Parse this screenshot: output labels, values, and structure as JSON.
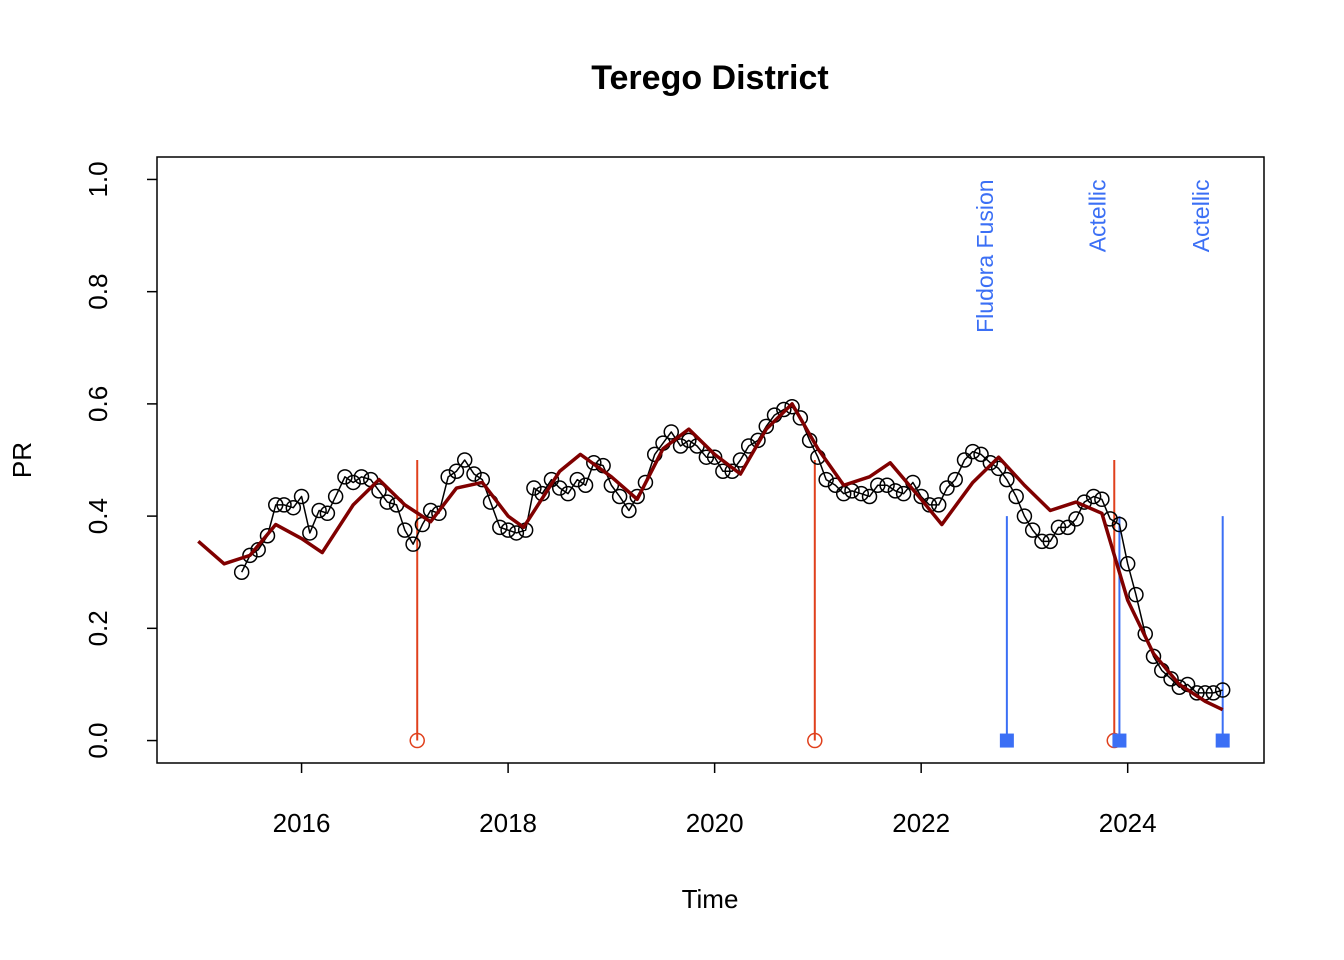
{
  "chart_data": {
    "type": "line",
    "title": "Terego District",
    "xlabel": "Time",
    "ylabel": "PR",
    "xlim": [
      2014.6,
      2025.32
    ],
    "ylim": [
      -0.04,
      1.04
    ],
    "xticks": [
      2016,
      2018,
      2020,
      2022,
      2024
    ],
    "yticks": [
      {
        "value": 0,
        "label": "0.0"
      },
      {
        "value": 0.2,
        "label": "0.2"
      },
      {
        "value": 0.4,
        "label": "0.4"
      },
      {
        "value": 0.6,
        "label": "0.6"
      },
      {
        "value": 0.8,
        "label": "0.8"
      },
      {
        "value": 1,
        "label": "1.0"
      }
    ],
    "series": [
      {
        "color": "#000000",
        "marker": "circle",
        "x": [
          2015.42,
          2015.5,
          2015.58,
          2015.67,
          2015.75,
          2015.83,
          2015.92,
          2016.0,
          2016.08,
          2016.17,
          2016.25,
          2016.33,
          2016.42,
          2016.5,
          2016.58,
          2016.67,
          2016.75,
          2016.83,
          2016.92,
          2017.0,
          2017.08,
          2017.17,
          2017.25,
          2017.33,
          2017.42,
          2017.5,
          2017.58,
          2017.67,
          2017.75,
          2017.83,
          2017.92,
          2018.0,
          2018.08,
          2018.17,
          2018.25,
          2018.33,
          2018.42,
          2018.5,
          2018.58,
          2018.67,
          2018.75,
          2018.83,
          2018.92,
          2019.0,
          2019.08,
          2019.17,
          2019.25,
          2019.33,
          2019.42,
          2019.5,
          2019.58,
          2019.67,
          2019.75,
          2019.83,
          2019.92,
          2020.0,
          2020.08,
          2020.17,
          2020.25,
          2020.33,
          2020.42,
          2020.5,
          2020.58,
          2020.67,
          2020.75,
          2020.83,
          2020.92,
          2021.0,
          2021.08,
          2021.17,
          2021.25,
          2021.33,
          2021.42,
          2021.5,
          2021.58,
          2021.67,
          2021.75,
          2021.83,
          2021.92,
          2022.0,
          2022.08,
          2022.17,
          2022.25,
          2022.33,
          2022.42,
          2022.5,
          2022.58,
          2022.67,
          2022.75,
          2022.83,
          2022.92,
          2023.0,
          2023.08,
          2023.17,
          2023.25,
          2023.33,
          2023.42,
          2023.5,
          2023.58,
          2023.67,
          2023.75,
          2023.83,
          2023.92,
          2024.0,
          2024.08,
          2024.17,
          2024.25,
          2024.33,
          2024.42,
          2024.5,
          2024.58,
          2024.67,
          2024.75,
          2024.83,
          2024.92
        ],
        "values": [
          0.3,
          0.33,
          0.34,
          0.365,
          0.42,
          0.42,
          0.415,
          0.435,
          0.37,
          0.41,
          0.405,
          0.435,
          0.47,
          0.46,
          0.47,
          0.465,
          0.445,
          0.425,
          0.42,
          0.375,
          0.35,
          0.385,
          0.41,
          0.405,
          0.47,
          0.48,
          0.5,
          0.475,
          0.465,
          0.425,
          0.38,
          0.375,
          0.37,
          0.375,
          0.45,
          0.44,
          0.465,
          0.45,
          0.44,
          0.465,
          0.455,
          0.495,
          0.49,
          0.455,
          0.435,
          0.41,
          0.435,
          0.46,
          0.51,
          0.53,
          0.55,
          0.525,
          0.535,
          0.525,
          0.505,
          0.505,
          0.48,
          0.48,
          0.5,
          0.525,
          0.535,
          0.56,
          0.58,
          0.59,
          0.595,
          0.575,
          0.535,
          0.505,
          0.465,
          0.455,
          0.44,
          0.445,
          0.44,
          0.435,
          0.455,
          0.455,
          0.445,
          0.44,
          0.46,
          0.435,
          0.42,
          0.42,
          0.45,
          0.465,
          0.5,
          0.515,
          0.51,
          0.495,
          0.485,
          0.465,
          0.435,
          0.4,
          0.375,
          0.355,
          0.355,
          0.38,
          0.38,
          0.395,
          0.425,
          0.435,
          0.43,
          0.395,
          0.385,
          0.315,
          0.26,
          0.19,
          0.15,
          0.125,
          0.11,
          0.095,
          0.1,
          0.085,
          0.085,
          0.085,
          0.09
        ]
      },
      {
        "color": "#800000",
        "x": [
          2015.0,
          2015.25,
          2015.5,
          2015.75,
          2016.0,
          2016.2,
          2016.5,
          2016.75,
          2017.0,
          2017.25,
          2017.5,
          2017.75,
          2018.0,
          2018.15,
          2018.5,
          2018.7,
          2019.0,
          2019.25,
          2019.5,
          2019.75,
          2020.0,
          2020.25,
          2020.5,
          2020.75,
          2021.0,
          2021.25,
          2021.5,
          2021.7,
          2022.0,
          2022.2,
          2022.5,
          2022.75,
          2023.0,
          2023.25,
          2023.5,
          2023.75,
          2024.0,
          2024.25,
          2024.5,
          2024.75,
          2024.92
        ],
        "values": [
          0.355,
          0.315,
          0.33,
          0.385,
          0.36,
          0.335,
          0.42,
          0.465,
          0.42,
          0.39,
          0.45,
          0.46,
          0.4,
          0.38,
          0.48,
          0.51,
          0.47,
          0.43,
          0.52,
          0.555,
          0.51,
          0.475,
          0.555,
          0.6,
          0.52,
          0.455,
          0.47,
          0.495,
          0.43,
          0.385,
          0.46,
          0.505,
          0.455,
          0.41,
          0.425,
          0.405,
          0.25,
          0.155,
          0.1,
          0.07,
          0.055
        ]
      }
    ],
    "events": [
      {
        "color": "#e0401c",
        "marker": "circle",
        "x": 2017.12,
        "height": 0.5
      },
      {
        "color": "#e0401c",
        "marker": "circle",
        "x": 2020.97,
        "height": 0.5
      },
      {
        "color": "#e0401c",
        "marker": "circle",
        "x": 2023.87,
        "height": 0.5
      },
      {
        "color": "#3b6ff5",
        "marker": "square",
        "x": 2022.83,
        "height": 0.4,
        "label": "Fludora Fusion"
      },
      {
        "color": "#3b6ff5",
        "marker": "square",
        "x": 2023.92,
        "height": 0.4,
        "label": "Actellic"
      },
      {
        "color": "#3b6ff5",
        "marker": "square",
        "x": 2024.92,
        "height": 0.4,
        "label": "Actellic"
      }
    ]
  }
}
